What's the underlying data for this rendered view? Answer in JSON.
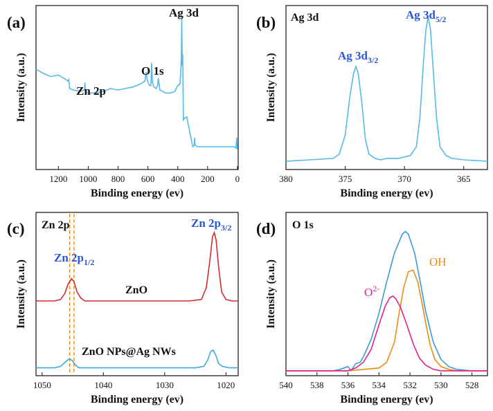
{
  "chart_data": [
    {
      "panel": "(a)",
      "type": "line",
      "title": "",
      "xlabel": "Binding energy (ev)",
      "ylabel": "Intensity (a.u.)",
      "xlim": [
        1350,
        -5
      ],
      "xticks": [
        1200,
        1000,
        800,
        600,
        400,
        200,
        0
      ],
      "y_ticks_shown": false,
      "annotations": [
        {
          "text": "Ag 3d",
          "x": 375,
          "y": 0.99
        },
        {
          "text": "O 1s",
          "x": 570,
          "y": 0.68
        },
        {
          "text": "Zn 2p",
          "x": 1020,
          "y": 0.56
        }
      ],
      "series": [
        {
          "color": "#55b9e8",
          "x": [
            1350,
            1300,
            1250,
            1200,
            1150,
            1135,
            1130,
            1125,
            1100,
            1050,
            1025,
            1022,
            1019,
            1000,
            950,
            900,
            850,
            800,
            750,
            700,
            650,
            620,
            612,
            605,
            590,
            580,
            575,
            570,
            560,
            545,
            535,
            530,
            520,
            500,
            480,
            450,
            420,
            400,
            385,
            380,
            376,
            373,
            370,
            367,
            362,
            355,
            340,
            300,
            290,
            287,
            284,
            270,
            250,
            200,
            150,
            100,
            60,
            20,
            10,
            5,
            0
          ],
          "y": [
            0.64,
            0.61,
            0.59,
            0.6,
            0.57,
            0.56,
            0.57,
            0.51,
            0.5,
            0.49,
            0.5,
            0.55,
            0.49,
            0.48,
            0.48,
            0.49,
            0.51,
            0.5,
            0.51,
            0.52,
            0.54,
            0.56,
            0.62,
            0.57,
            0.53,
            0.53,
            0.68,
            0.55,
            0.52,
            0.51,
            0.53,
            0.58,
            0.5,
            0.49,
            0.48,
            0.48,
            0.49,
            0.53,
            0.54,
            0.62,
            0.72,
            0.98,
            0.66,
            0.74,
            0.3,
            0.31,
            0.32,
            0.12,
            0.13,
            0.18,
            0.13,
            0.12,
            0.12,
            0.12,
            0.12,
            0.12,
            0.12,
            0.12,
            0.11,
            0.18,
            0.1
          ]
        }
      ]
    },
    {
      "panel": "(b)",
      "type": "line",
      "title": "Ag 3d",
      "xlabel": "Binding energy (ev)",
      "ylabel": "Intensity (a.u.)",
      "xlim": [
        380,
        363
      ],
      "xticks": [
        380,
        375,
        370,
        365
      ],
      "y_ticks_shown": false,
      "annotations": [
        {
          "text": "Ag 3d",
          "sub": "3/2",
          "x": 374.0
        },
        {
          "text": "Ag 3d",
          "sub": "5/2",
          "x": 368.0
        }
      ],
      "series": [
        {
          "color": "#55b9e8",
          "x": [
            380,
            378,
            376,
            375.5,
            375,
            374.6,
            374.3,
            374.1,
            373.9,
            373.6,
            373.3,
            373,
            372.5,
            372,
            371.5,
            370.5,
            369.5,
            369,
            368.7,
            368.4,
            368.2,
            368.0,
            367.8,
            367.6,
            367.3,
            367,
            366.5,
            366,
            365,
            363
          ],
          "y": [
            0.0,
            0.01,
            0.02,
            0.05,
            0.18,
            0.45,
            0.6,
            0.65,
            0.6,
            0.4,
            0.15,
            0.05,
            0.02,
            0.01,
            0.02,
            0.02,
            0.04,
            0.1,
            0.3,
            0.68,
            0.9,
            0.99,
            0.9,
            0.65,
            0.3,
            0.1,
            0.04,
            0.02,
            0.01,
            0.0
          ]
        }
      ]
    },
    {
      "panel": "(c)",
      "type": "line",
      "title": "Zn 2p",
      "xlabel": "Binding energy (ev)",
      "ylabel": "Intensity (a.u.)",
      "xlim": [
        1051,
        1018
      ],
      "xticks": [
        1050,
        1040,
        1030,
        1020
      ],
      "y_ticks_shown": false,
      "reference_lines": [
        1045.5,
        1044.8
      ],
      "annotations": [
        {
          "text": "Zn 2p",
          "sub": "1/2",
          "x": 1045.0
        },
        {
          "text": "Zn 2p",
          "sub": "3/2",
          "x": 1021.8
        }
      ],
      "series": [
        {
          "name": "ZnO",
          "color": "#d42a2a",
          "x": [
            1051,
            1048,
            1047,
            1046.3,
            1045.8,
            1045.2,
            1044.8,
            1044.3,
            1043.7,
            1043,
            1041,
            1036,
            1030,
            1026,
            1024,
            1023.2,
            1022.6,
            1022.2,
            1021.9,
            1021.6,
            1021.2,
            1020.7,
            1020,
            1019,
            1018
          ],
          "y": [
            0.47,
            0.47,
            0.48,
            0.52,
            0.58,
            0.62,
            0.6,
            0.53,
            0.49,
            0.47,
            0.47,
            0.47,
            0.47,
            0.47,
            0.48,
            0.56,
            0.75,
            0.9,
            0.93,
            0.88,
            0.7,
            0.53,
            0.48,
            0.47,
            0.47
          ]
        },
        {
          "name": "ZnO NPs@Ag NWs",
          "color": "#3ea8e0",
          "x": [
            1051,
            1048,
            1047,
            1046.2,
            1045.6,
            1045.1,
            1044.6,
            1044,
            1043,
            1040,
            1034,
            1028,
            1025,
            1023.6,
            1023,
            1022.5,
            1022.1,
            1021.7,
            1021.2,
            1020.6,
            1019.5,
            1018
          ],
          "y": [
            0.02,
            0.02,
            0.03,
            0.06,
            0.08,
            0.07,
            0.04,
            0.02,
            0.02,
            0.02,
            0.02,
            0.02,
            0.02,
            0.03,
            0.07,
            0.13,
            0.14,
            0.11,
            0.05,
            0.03,
            0.02,
            0.02
          ]
        }
      ]
    },
    {
      "panel": "(d)",
      "type": "line",
      "title": "O 1s",
      "xlabel": "Binding energy (ev)",
      "ylabel": "Intensity (a.u.)",
      "xlim": [
        540,
        527
      ],
      "xticks": [
        540,
        538,
        536,
        534,
        532,
        530,
        528
      ],
      "y_ticks_shown": false,
      "annotations": [
        {
          "text": "OH",
          "x": 531.6,
          "color": "#ee8a12"
        },
        {
          "text": "O",
          "sup": "2-",
          "x": 533.7,
          "color": "#e0228c"
        }
      ],
      "series": [
        {
          "color": "#3a9ad8",
          "x": [
            540,
            538,
            537,
            536.5,
            536,
            535.8,
            535.5,
            535.2,
            535,
            534.5,
            534,
            533.5,
            533,
            532.5,
            532.3,
            532.1,
            531.7,
            531.3,
            531,
            530.5,
            530,
            529.5,
            529,
            528,
            527
          ],
          "y": [
            0.0,
            0.0,
            0.0,
            0.01,
            0.03,
            0.0,
            0.05,
            0.06,
            0.1,
            0.22,
            0.4,
            0.62,
            0.82,
            0.95,
            0.97,
            0.95,
            0.82,
            0.6,
            0.42,
            0.2,
            0.08,
            0.03,
            0.01,
            0.0,
            0.0
          ]
        },
        {
          "color": "#ee8a12",
          "x": [
            540,
            536,
            534,
            533.5,
            533,
            532.7,
            532.4,
            532.1,
            531.8,
            531.5,
            531.2,
            531,
            530.7,
            530.4,
            530,
            529.5,
            529,
            527
          ],
          "y": [
            0.0,
            0.0,
            0.02,
            0.06,
            0.2,
            0.4,
            0.58,
            0.69,
            0.7,
            0.62,
            0.46,
            0.34,
            0.18,
            0.08,
            0.03,
            0.01,
            0.0,
            0.0
          ]
        },
        {
          "color": "#e0228c",
          "x": [
            540,
            537,
            536,
            535.5,
            535,
            534.5,
            534,
            533.6,
            533.3,
            533.1,
            532.9,
            532.6,
            532.2,
            531.8,
            531.4,
            531,
            530.5,
            530,
            529,
            527
          ],
          "y": [
            0.0,
            0.0,
            0.0,
            0.02,
            0.06,
            0.15,
            0.32,
            0.45,
            0.51,
            0.52,
            0.5,
            0.44,
            0.32,
            0.19,
            0.09,
            0.04,
            0.01,
            0.0,
            0.0,
            0.0
          ]
        }
      ]
    }
  ]
}
